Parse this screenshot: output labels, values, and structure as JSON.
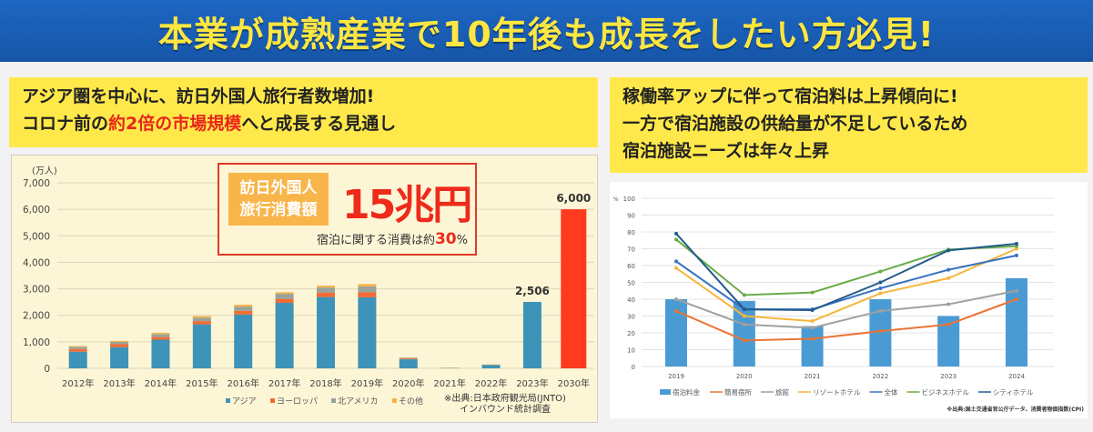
{
  "banner": {
    "title": "本業が成熟産業で10年後も成長をしたい方必見!"
  },
  "left": {
    "heading_line1": "アジア圏を中心に、訪日外国人旅行者数増加!",
    "heading_line2_a": "コロナ前の",
    "heading_line2_b": "約2倍の市場規模",
    "heading_line2_c": "へと成長する見通し",
    "callout": {
      "label_line1": "訪日外国人",
      "label_line2": "旅行消費額",
      "amount": "15兆円",
      "note_a": "宿泊に関する消費は約",
      "note_b": "30",
      "note_c": "%"
    },
    "source_line1": "※出典:日本政府観光局(JNTO)",
    "source_line2": "インバウンド統計調査"
  },
  "right": {
    "heading_line1": "稼働率アップに伴って宿泊料は上昇傾向に!",
    "heading_line2": "一方で宿泊施設の供給量が不足しているため",
    "heading_line3": "宿泊施設ニーズは年々上昇",
    "source": "※出典:国土交通省官公庁データ、消費者物価指数(CPI)"
  },
  "chart_data": [
    {
      "type": "bar",
      "stacked": true,
      "unit_label": "(万人)",
      "ylim": [
        0,
        7000
      ],
      "yticks": [
        "0",
        "1,000",
        "2,000",
        "3,000",
        "4,000",
        "5,000",
        "6,000",
        "7,000"
      ],
      "categories": [
        "2012年",
        "2013年",
        "2014年",
        "2015年",
        "2016年",
        "2017年",
        "2018年",
        "2019年",
        "2020年",
        "2021年",
        "2022年",
        "2023年",
        "2030年"
      ],
      "series": [
        {
          "name": "アジア",
          "color": "#3d93b8",
          "values": [
            630,
            800,
            1080,
            1660,
            2030,
            2470,
            2690,
            2680,
            340,
            10,
            120,
            2506,
            null
          ]
        },
        {
          "name": "ヨーロッパ",
          "color": "#f26b35",
          "values": [
            100,
            110,
            100,
            120,
            140,
            150,
            170,
            190,
            25,
            5,
            10,
            null,
            null
          ]
        },
        {
          "name": "北アメリカ",
          "color": "#9aa39a",
          "values": [
            80,
            90,
            110,
            130,
            160,
            190,
            190,
            220,
            30,
            5,
            15,
            null,
            null
          ]
        },
        {
          "name": "その他",
          "color": "#f5b24a",
          "values": [
            30,
            36,
            50,
            60,
            70,
            60,
            70,
            90,
            15,
            5,
            5,
            null,
            null
          ]
        },
        {
          "name": "",
          "color": "#ff3a1f",
          "values": [
            null,
            null,
            null,
            null,
            null,
            null,
            null,
            null,
            null,
            null,
            null,
            null,
            6000
          ]
        }
      ],
      "data_labels": {
        "2023年": "2,506",
        "2030年": "6,000"
      },
      "grid": true,
      "legend": "bottom"
    },
    {
      "type": "bar+line",
      "unit_label": "%",
      "ylim": [
        0,
        100
      ],
      "yticks": [
        "0",
        "10",
        "20",
        "30",
        "40",
        "50",
        "60",
        "70",
        "80",
        "90",
        "100"
      ],
      "categories": [
        "2019",
        "2020",
        "2021",
        "2022",
        "2023",
        "2024"
      ],
      "bar": {
        "name": "宿泊料金",
        "color": "#4a9bd4",
        "values": [
          40,
          39,
          24,
          40,
          30,
          52.5
        ]
      },
      "lines": [
        {
          "name": "簡易宿所",
          "color": "#ea7434",
          "values": [
            33,
            15.5,
            16.5,
            21,
            25,
            40
          ]
        },
        {
          "name": "旅館",
          "color": "#a0a0a0",
          "values": [
            40,
            25,
            23,
            33,
            37,
            45
          ]
        },
        {
          "name": "リゾートホテル",
          "color": "#f6b63c",
          "values": [
            58.5,
            30,
            27,
            43.5,
            52.5,
            70
          ]
        },
        {
          "name": "全体",
          "color": "#3a72c0",
          "values": [
            62.5,
            34,
            34,
            46.5,
            57.5,
            66
          ]
        },
        {
          "name": "ビジネスホテル",
          "color": "#6aab4a",
          "values": [
            75.5,
            42.5,
            44,
            56.5,
            69.5,
            71.5
          ]
        },
        {
          "name": "シティホテル",
          "color": "#235a8c",
          "values": [
            79,
            34,
            33.5,
            50,
            69,
            73
          ]
        }
      ],
      "grid": true,
      "legend": "bottom"
    }
  ]
}
